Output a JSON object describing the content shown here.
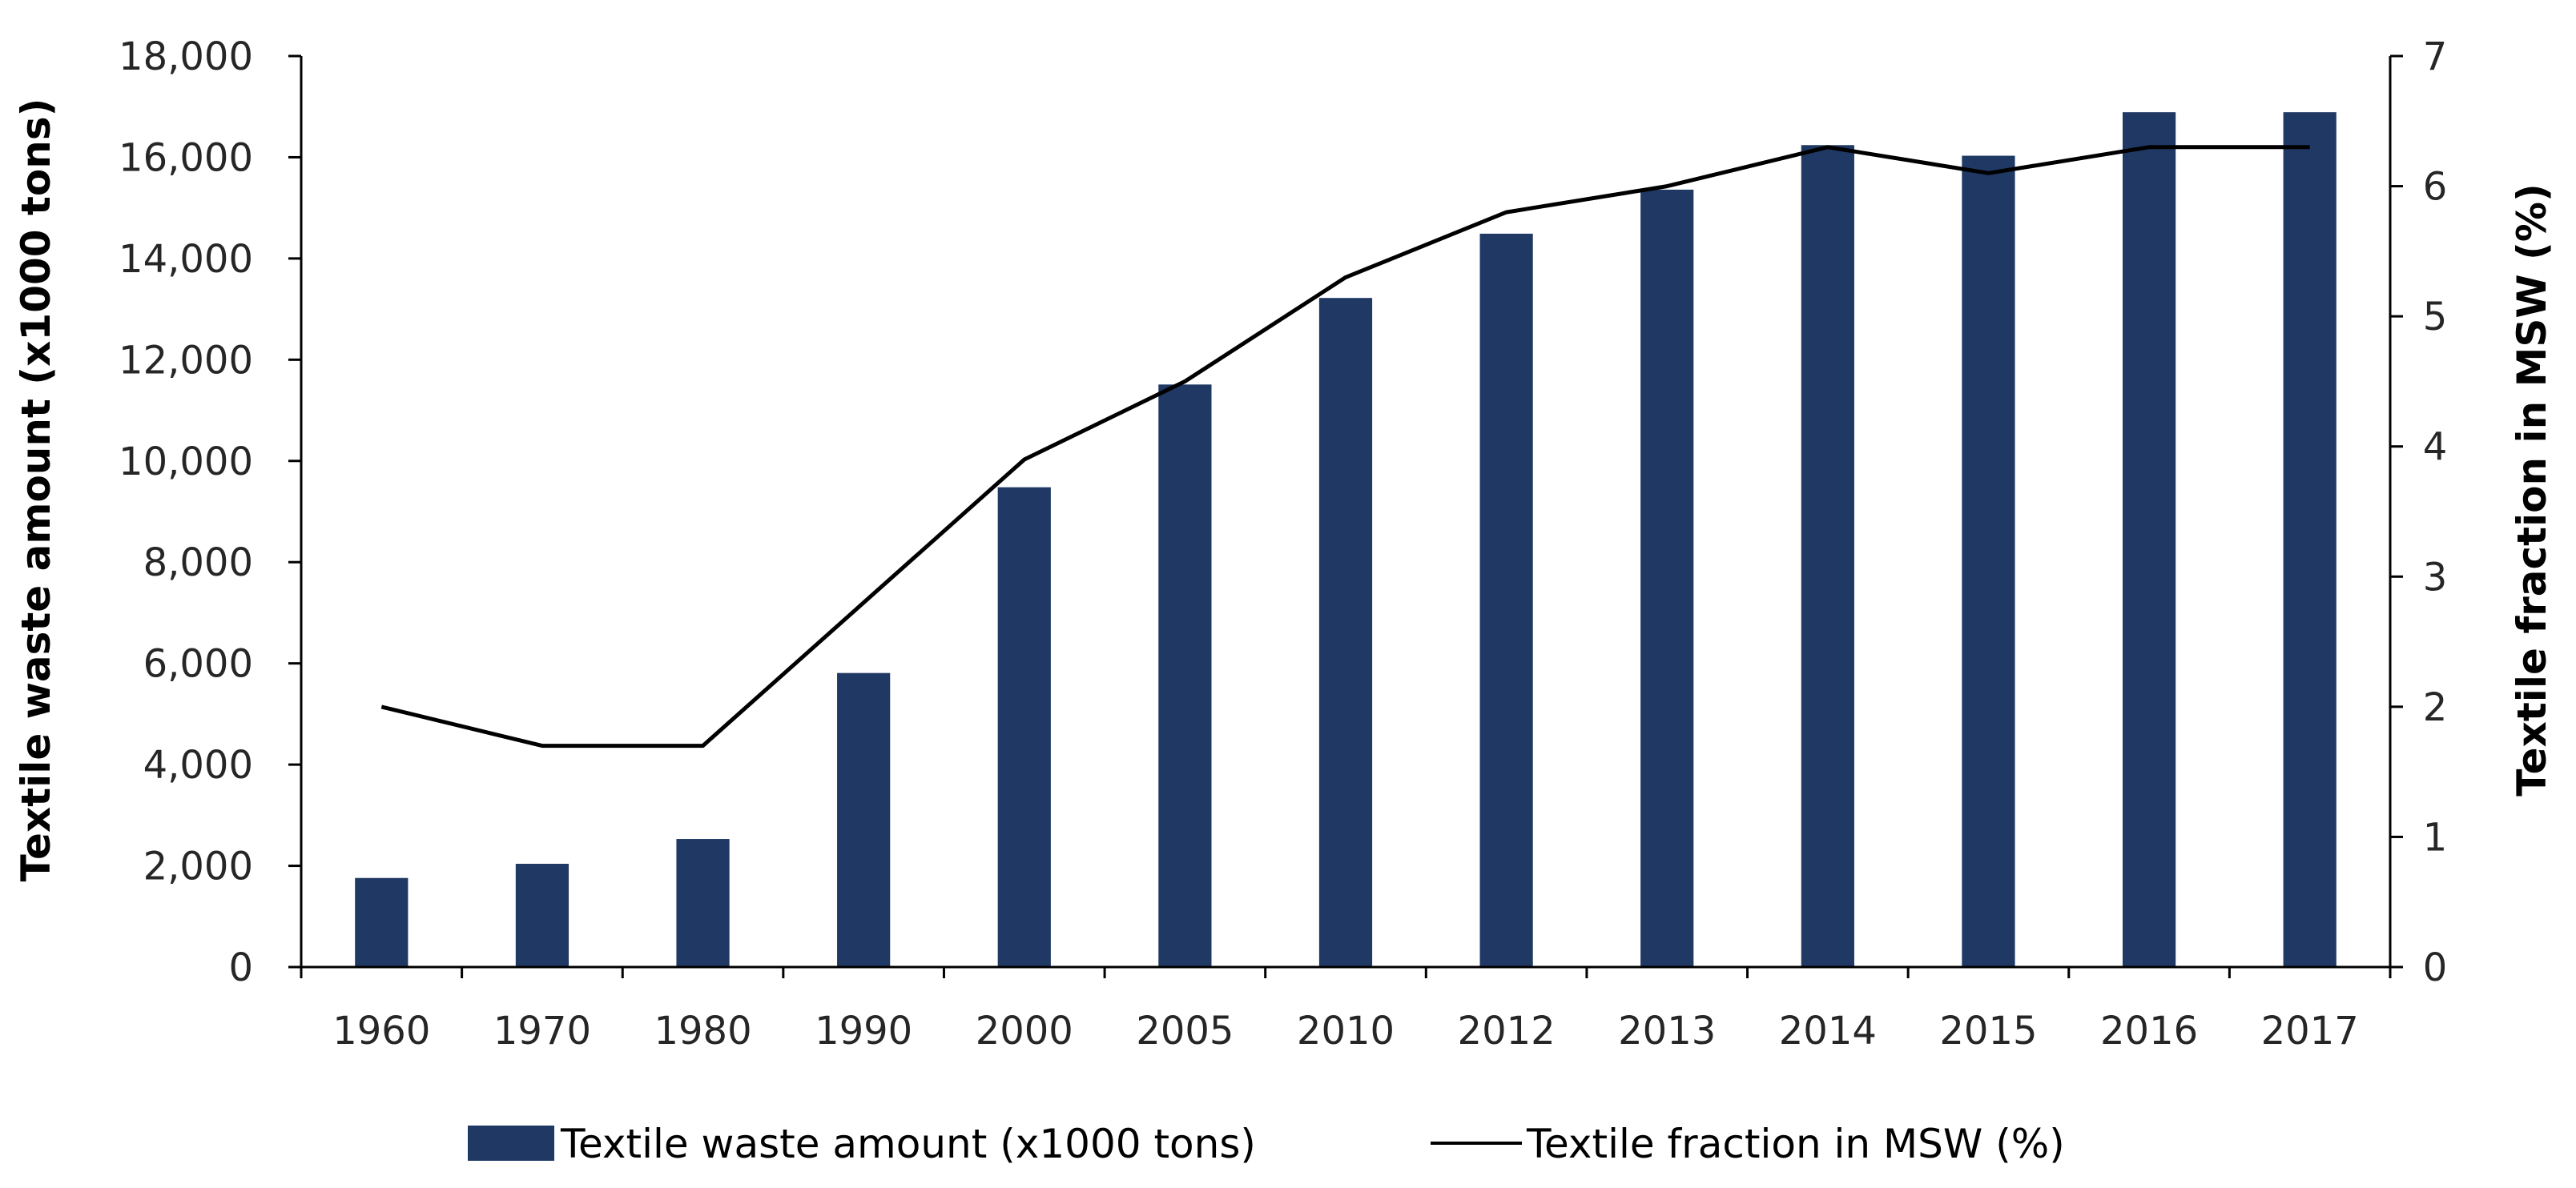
{
  "chart_data": {
    "type": "bar",
    "categories": [
      "1960",
      "1970",
      "1980",
      "1990",
      "2000",
      "2005",
      "2010",
      "2012",
      "2013",
      "2014",
      "2015",
      "2016",
      "2017"
    ],
    "series": [
      {
        "name": "Textile waste amount (x1000 tons)",
        "type": "bar",
        "axis": "left",
        "values": [
          1760,
          2040,
          2530,
          5810,
          9480,
          11510,
          13220,
          14490,
          15360,
          16240,
          16030,
          16890,
          16890
        ]
      },
      {
        "name": "Textile fraction in MSW (%)",
        "type": "line",
        "axis": "right",
        "values": [
          2.0,
          1.7,
          1.7,
          2.8,
          3.9,
          4.5,
          5.3,
          5.8,
          6.0,
          6.3,
          6.1,
          6.3,
          6.3
        ]
      }
    ],
    "y_left": {
      "label": "Textile waste amount (x1000 tons)",
      "range": [
        0,
        18000
      ],
      "ticks": [
        "0",
        "2,000",
        "4,000",
        "6,000",
        "8,000",
        "10,000",
        "12,000",
        "14,000",
        "16,000",
        "18,000"
      ]
    },
    "y_right": {
      "label": "Textile fraction in MSW (%)",
      "range": [
        0,
        7
      ],
      "ticks": [
        "0",
        "1",
        "2",
        "3",
        "4",
        "5",
        "6",
        "7"
      ]
    },
    "grid": false,
    "legend_position": "bottom",
    "colors": {
      "bars": "#1f3864",
      "line": "#000000",
      "axis": "#000000",
      "text": "#262626"
    }
  }
}
